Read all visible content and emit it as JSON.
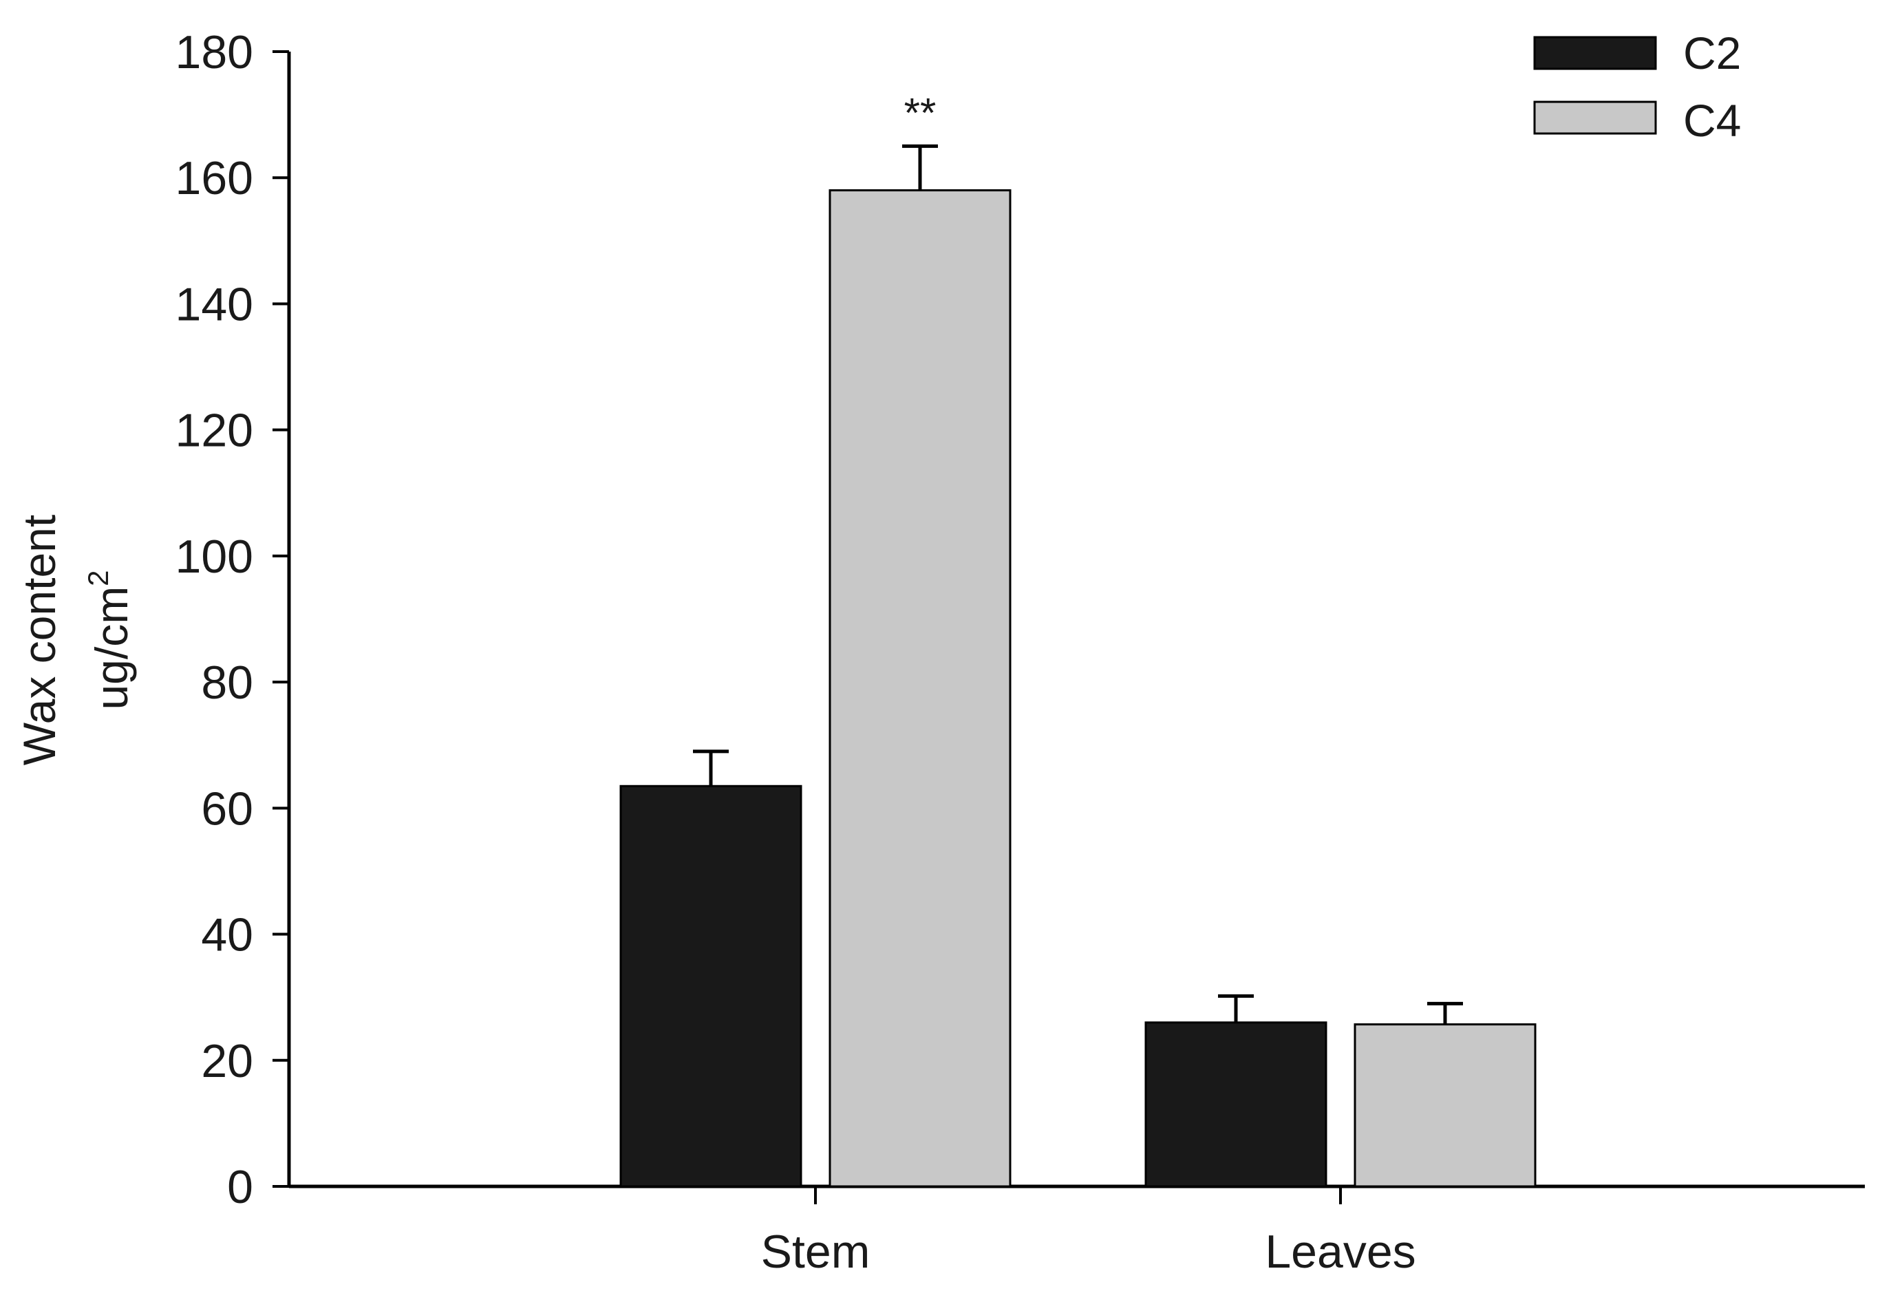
{
  "chart_data": {
    "type": "bar",
    "categories": [
      "Stem",
      "Leaves"
    ],
    "series": [
      {
        "name": "C2",
        "values": [
          63.5,
          26
        ],
        "errors": [
          5.5,
          4.2
        ],
        "color": "#191919"
      },
      {
        "name": "C4",
        "values": [
          158,
          25.7
        ],
        "errors": [
          7,
          3.3
        ],
        "color": "#c8c8c8"
      }
    ],
    "ylabel_line1": "Wax content",
    "ylabel_line2_base": "ug/cm",
    "ylabel_line2_sup": "2",
    "ylim": [
      0,
      180
    ],
    "yticks": [
      0,
      20,
      40,
      60,
      80,
      100,
      120,
      140,
      160,
      180
    ],
    "annotations": [
      {
        "category": "Stem",
        "series": "C4",
        "text": "**"
      }
    ],
    "legend_position": "top-right",
    "grid": false
  }
}
